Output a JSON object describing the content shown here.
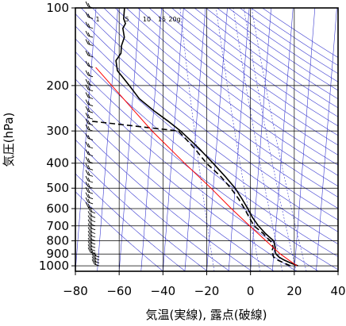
{
  "chart_data": {
    "type": "line",
    "subtype": "skew-T log-p thermodynamic diagram (emagram)",
    "xlabel": "気温(実線), 露点(破線)",
    "ylabel": "気圧(hPa)",
    "xlim": [
      -80,
      40
    ],
    "ylim": [
      1050,
      100
    ],
    "y_scale": "log",
    "x_ticks": [
      -80,
      -60,
      -40,
      -20,
      0,
      20,
      40
    ],
    "x_tick_labels": [
      "−80",
      "−60",
      "−40",
      "−20",
      "0",
      "20",
      "40"
    ],
    "y_ticks": [
      100,
      200,
      300,
      400,
      500,
      600,
      700,
      800,
      900,
      1000
    ],
    "y_tick_labels": [
      "100",
      "200",
      "300",
      "400",
      "500",
      "600",
      "700",
      "800",
      "900",
      "1000"
    ],
    "grid": true,
    "mixing_ratio_labels": [
      "1",
      "5",
      "10",
      "15",
      "20g"
    ],
    "colors": {
      "temperature": "#000000",
      "dewpoint": "#000000",
      "reference_adiabat": "#ff0000",
      "guide_lines": "#3a3ad0",
      "grid": "#000000",
      "wind_barbs": "#000000"
    },
    "series": [
      {
        "role": "temperature",
        "line": "solid",
        "points": [
          [
            1000,
            21.5
          ],
          [
            975,
            18
          ],
          [
            950,
            15
          ],
          [
            925,
            12.5
          ],
          [
            900,
            11
          ],
          [
            875,
            10.5
          ],
          [
            850,
            10.5
          ],
          [
            825,
            10
          ],
          [
            800,
            9.5
          ],
          [
            775,
            7.5
          ],
          [
            750,
            5.5
          ],
          [
            700,
            2
          ],
          [
            650,
            -1
          ],
          [
            600,
            -3.5
          ],
          [
            550,
            -6.5
          ],
          [
            500,
            -10
          ],
          [
            450,
            -15
          ],
          [
            400,
            -21
          ],
          [
            350,
            -28
          ],
          [
            300,
            -37
          ],
          [
            275,
            -43
          ],
          [
            250,
            -50
          ],
          [
            225,
            -57
          ],
          [
            200,
            -62
          ],
          [
            175,
            -68
          ],
          [
            160,
            -69
          ],
          [
            150,
            -67
          ],
          [
            140,
            -67
          ],
          [
            130,
            -66
          ],
          [
            120,
            -67
          ],
          [
            115,
            -66
          ],
          [
            110,
            -67
          ],
          [
            100,
            -67
          ]
        ]
      },
      {
        "role": "dewpoint",
        "line": "dashed",
        "points": [
          [
            1000,
            18
          ],
          [
            975,
            15
          ],
          [
            950,
            12
          ],
          [
            925,
            10
          ],
          [
            900,
            9.5
          ],
          [
            875,
            9
          ],
          [
            850,
            9.5
          ],
          [
            825,
            9
          ],
          [
            800,
            8
          ],
          [
            775,
            6
          ],
          [
            750,
            4.5
          ],
          [
            700,
            0
          ],
          [
            650,
            -2.5
          ],
          [
            600,
            -5
          ],
          [
            550,
            -8
          ],
          [
            500,
            -12
          ],
          [
            450,
            -17
          ],
          [
            400,
            -24
          ],
          [
            350,
            -30
          ],
          [
            300,
            -38
          ],
          [
            275,
            -78
          ]
        ]
      },
      {
        "role": "reference_adiabat",
        "line": "solid",
        "points": [
          [
            1000,
            21
          ],
          [
            900,
            13
          ],
          [
            800,
            6
          ],
          [
            700,
            -2
          ],
          [
            600,
            -11
          ],
          [
            500,
            -21
          ],
          [
            400,
            -34
          ],
          [
            300,
            -50
          ],
          [
            250,
            -59
          ],
          [
            200,
            -70
          ],
          [
            170,
            -78
          ]
        ]
      }
    ],
    "wind_barbs": {
      "column_temperature": -72,
      "levels": [
        1000,
        975,
        950,
        925,
        900,
        875,
        850,
        825,
        800,
        775,
        750,
        725,
        700,
        675,
        650,
        625,
        600,
        575,
        550,
        525,
        500,
        475,
        450,
        425,
        400,
        375,
        350,
        325,
        300,
        285,
        270,
        255,
        240,
        225,
        210,
        200,
        185,
        170,
        155,
        140,
        130,
        120,
        110,
        100
      ]
    }
  }
}
